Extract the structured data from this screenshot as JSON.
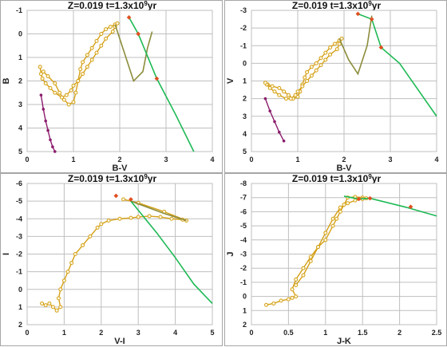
{
  "chart_data": [
    {
      "type": "line",
      "title": "Z=0.019   t=1.3x10",
      "title_sup": "9",
      "title_tail": "yr",
      "xlabel": "B-V",
      "ylabel": "B",
      "xlim": [
        0,
        4
      ],
      "ylim": [
        -1,
        5
      ],
      "y_inverted": true,
      "xticks": [
        "0",
        "1",
        "2",
        "3",
        "4"
      ],
      "yticks": [
        "-1",
        "0",
        "1",
        "2",
        "3",
        "4",
        "5"
      ],
      "grid": true,
      "series": [
        {
          "color": "#d4a017",
          "marker": "circle-open",
          "x": [
            0.35,
            0.45,
            0.6,
            0.7,
            0.8,
            0.9,
            1.0,
            1.05,
            1.1,
            1.15,
            1.2,
            1.3,
            1.4,
            1.5,
            1.6,
            1.7,
            1.8,
            1.9,
            1.95,
            1.9,
            1.85,
            1.7,
            1.6,
            1.5,
            1.4,
            1.3,
            1.2,
            1.1,
            1.0,
            0.95,
            0.85,
            0.75,
            0.6,
            0.5,
            0.4,
            0.33,
            0.3,
            0.28
          ],
          "y": [
            1.6,
            1.8,
            2.1,
            2.5,
            2.8,
            3.0,
            2.9,
            2.5,
            2.0,
            1.5,
            1.2,
            0.9,
            0.6,
            0.3,
            0.0,
            -0.2,
            -0.3,
            -0.4,
            -0.45,
            -0.3,
            -0.1,
            0.2,
            0.5,
            0.8,
            1.1,
            1.4,
            1.7,
            2.0,
            2.2,
            2.4,
            2.6,
            2.7,
            2.5,
            2.3,
            2.1,
            1.9,
            1.7,
            1.4
          ]
        },
        {
          "color": "#8c8c3c",
          "marker": "none",
          "x": [
            1.9,
            2.1,
            2.3,
            2.5,
            2.6,
            2.7
          ],
          "y": [
            -0.4,
            0.8,
            2.0,
            1.6,
            0.6,
            -0.1
          ]
        },
        {
          "color": "#8c1c6c",
          "marker": "filled",
          "x": [
            0.3,
            0.35,
            0.4,
            0.45,
            0.5,
            0.55,
            0.6
          ],
          "y": [
            2.6,
            3.2,
            3.7,
            4.1,
            4.5,
            4.8,
            5.0
          ]
        },
        {
          "color": "#1db954",
          "marker": "none",
          "x": [
            2.2,
            2.4,
            2.8,
            3.2,
            3.6
          ],
          "y": [
            -0.7,
            0.0,
            1.9,
            3.4,
            5.0
          ]
        },
        {
          "color": "#e05020",
          "marker": "diamond",
          "x": [
            2.2,
            2.4,
            2.8
          ],
          "y": [
            -0.7,
            0.0,
            1.9
          ]
        }
      ]
    },
    {
      "type": "line",
      "title": "Z=0.019   t=1.3x10",
      "title_sup": "9",
      "title_tail": "yr",
      "xlabel": "B-V",
      "ylabel": "V",
      "xlim": [
        0,
        4
      ],
      "ylim": [
        -3,
        5
      ],
      "y_inverted": true,
      "xticks": [
        "0",
        "1",
        "2",
        "3",
        "4"
      ],
      "yticks": [
        "-3",
        "-2",
        "-1",
        "0",
        "1",
        "2",
        "3",
        "4",
        "5"
      ],
      "grid": true,
      "series": [
        {
          "color": "#d4a017",
          "marker": "circle-open",
          "x": [
            0.35,
            0.45,
            0.6,
            0.7,
            0.8,
            0.9,
            1.0,
            1.05,
            1.1,
            1.15,
            1.2,
            1.3,
            1.4,
            1.5,
            1.6,
            1.7,
            1.8,
            1.9,
            1.95,
            1.9,
            1.85,
            1.7,
            1.6,
            1.5,
            1.4,
            1.3,
            1.2,
            1.1,
            1.0,
            0.95,
            0.85,
            0.75,
            0.6,
            0.5,
            0.4,
            0.33,
            0.3
          ],
          "y": [
            1.2,
            1.3,
            1.4,
            1.6,
            1.8,
            2.0,
            1.9,
            1.6,
            1.2,
            0.8,
            0.5,
            0.2,
            0.0,
            -0.3,
            -0.6,
            -0.9,
            -1.1,
            -1.3,
            -1.4,
            -1.1,
            -0.8,
            -0.5,
            -0.2,
            0.1,
            0.4,
            0.7,
            1.0,
            1.3,
            1.6,
            1.8,
            2.0,
            2.0,
            1.8,
            1.6,
            1.4,
            1.2,
            1.1
          ]
        },
        {
          "color": "#8c8c3c",
          "marker": "none",
          "x": [
            1.9,
            2.1,
            2.3,
            2.5,
            2.6
          ],
          "y": [
            -1.4,
            -0.2,
            0.6,
            -1.0,
            -2.7
          ]
        },
        {
          "color": "#8c1c6c",
          "marker": "filled",
          "x": [
            0.3,
            0.4,
            0.5,
            0.6,
            0.7
          ],
          "y": [
            2.0,
            2.7,
            3.3,
            3.9,
            4.4
          ]
        },
        {
          "color": "#1db954",
          "marker": "none",
          "x": [
            2.3,
            2.6,
            2.8,
            3.2,
            3.6,
            4.0
          ],
          "y": [
            -2.8,
            -2.5,
            -0.9,
            0.0,
            1.5,
            3.0
          ]
        },
        {
          "color": "#e05020",
          "marker": "diamond",
          "x": [
            2.3,
            2.6,
            2.8
          ],
          "y": [
            -2.8,
            -2.5,
            -0.9
          ]
        }
      ]
    },
    {
      "type": "line",
      "title": "Z=0.019   t=1.3x10",
      "title_sup": "9",
      "title_tail": "yr",
      "xlabel": "V-I",
      "ylabel": "I",
      "xlim": [
        0,
        5
      ],
      "ylim": [
        -6,
        2
      ],
      "y_inverted": true,
      "xticks": [
        "0",
        "1",
        "2",
        "3",
        "4",
        "5"
      ],
      "yticks": [
        "-6",
        "-5",
        "-4",
        "-3",
        "-2",
        "-1",
        "0",
        "1",
        "2"
      ],
      "grid": true,
      "series": [
        {
          "color": "#d4a017",
          "marker": "circle-open",
          "x": [
            0.4,
            0.5,
            0.6,
            0.7,
            0.8,
            0.9,
            0.85,
            0.9,
            1.0,
            1.1,
            1.2,
            1.3,
            1.5,
            1.7,
            1.9,
            2.0,
            2.2,
            2.5,
            2.8,
            3.0,
            3.3,
            3.6,
            3.9,
            4.2,
            4.3,
            3.7,
            3.0,
            2.6
          ],
          "y": [
            0.8,
            0.9,
            0.8,
            1.0,
            1.2,
            1.0,
            0.5,
            0.0,
            -0.5,
            -1.0,
            -1.5,
            -2.0,
            -2.5,
            -3.0,
            -3.5,
            -3.7,
            -3.9,
            -4.0,
            -4.05,
            -4.1,
            -4.15,
            -4.1,
            -4.0,
            -3.95,
            -3.9,
            -4.4,
            -4.9,
            -5.1
          ]
        },
        {
          "color": "#8c8c3c",
          "marker": "none",
          "x": [
            4.3,
            3.7,
            2.8
          ],
          "y": [
            -3.9,
            -4.3,
            -5.0
          ]
        },
        {
          "color": "#1db954",
          "marker": "none",
          "x": [
            2.8,
            3.5,
            4.0,
            4.5,
            5.0
          ],
          "y": [
            -5.0,
            -3.2,
            -1.8,
            -0.3,
            0.8
          ]
        },
        {
          "color": "#e05020",
          "marker": "diamond",
          "x": [
            2.4,
            2.8
          ],
          "y": [
            -5.3,
            -5.1
          ]
        }
      ]
    },
    {
      "type": "line",
      "title": "Z=0.019   t=1.3x10",
      "title_sup": "9",
      "title_tail": "yr",
      "xlabel": "J-K",
      "ylabel": "J",
      "xlim": [
        0,
        2.5
      ],
      "ylim": [
        -8,
        2
      ],
      "y_inverted": true,
      "xticks": [
        "0",
        "0.5",
        "1",
        "1.5",
        "2",
        "2.5"
      ],
      "yticks": [
        "-8",
        "-7",
        "-6",
        "-5",
        "-4",
        "-3",
        "-2",
        "-1",
        "0",
        "1",
        "2"
      ],
      "grid": true,
      "series": [
        {
          "color": "#d4a017",
          "marker": "circle-open",
          "x": [
            0.2,
            0.3,
            0.4,
            0.5,
            0.55,
            0.6,
            0.55,
            0.6,
            0.7,
            0.8,
            0.9,
            1.0,
            1.1,
            1.15,
            1.2,
            1.25,
            1.3,
            1.4,
            1.5,
            1.55,
            1.5,
            1.4,
            1.3,
            1.2,
            1.1,
            1.0,
            0.9,
            0.8,
            0.7,
            0.6
          ],
          "y": [
            0.6,
            0.5,
            0.3,
            0.2,
            0.1,
            0.0,
            -0.5,
            -1.2,
            -2.0,
            -2.8,
            -3.5,
            -4.0,
            -5.0,
            -5.5,
            -6.0,
            -6.5,
            -7.0,
            -7.05,
            -7.0,
            -6.95,
            -6.9,
            -6.8,
            -6.6,
            -6.3,
            -5.5,
            -4.5,
            -3.5,
            -2.5,
            -1.5,
            -0.8
          ]
        },
        {
          "color": "#1db954",
          "marker": "none",
          "x": [
            1.25,
            1.45,
            1.6,
            2.1,
            2.5
          ],
          "y": [
            -7.1,
            -6.9,
            -6.95,
            -6.3,
            -5.7
          ]
        },
        {
          "color": "#e05020",
          "marker": "diamond",
          "x": [
            1.45,
            1.6,
            2.15
          ],
          "y": [
            -6.9,
            -6.95,
            -6.35
          ]
        }
      ]
    }
  ]
}
